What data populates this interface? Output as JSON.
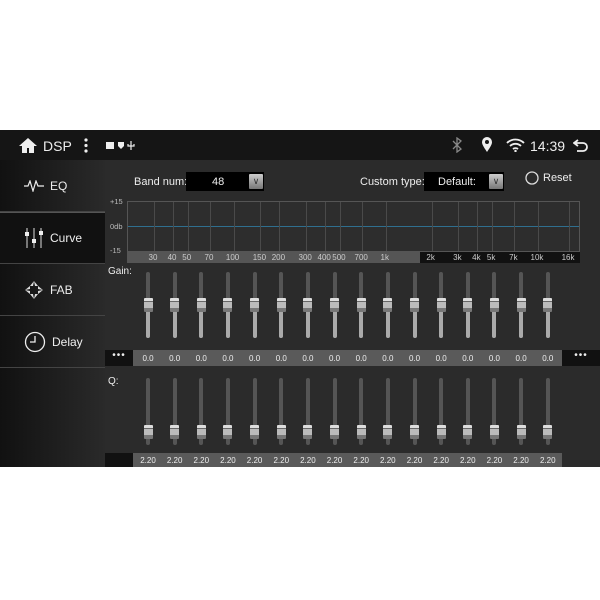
{
  "status": {
    "title": "DSP",
    "time": "14:39",
    "icons": [
      "home-icon",
      "more-vert-icon",
      "image-icon",
      "shield-icon",
      "usb-icon",
      "bluetooth-icon",
      "location-icon",
      "wifi-icon",
      "back-icon"
    ]
  },
  "sidebar": {
    "items": [
      {
        "label": "EQ",
        "icon": "waveform-icon"
      },
      {
        "label": "Curve",
        "icon": "sliders-icon",
        "selected": true
      },
      {
        "label": "FAB",
        "icon": "fader-balance-icon"
      },
      {
        "label": "Delay",
        "icon": "clock-icon"
      }
    ]
  },
  "controls": {
    "band_label": "Band num:",
    "band_value": "48",
    "custom_label": "Custom type:",
    "custom_value": "Default:",
    "reset_label": "Reset"
  },
  "graph": {
    "y_top": "+15",
    "y_mid": "0db",
    "y_bot": "-15",
    "freqs": [
      "30",
      "40",
      "50",
      "70",
      "100",
      "150",
      "200",
      "300",
      "400",
      "500",
      "700",
      "1k",
      "2k",
      "3k",
      "4k",
      "5k",
      "7k",
      "10k",
      "16k"
    ],
    "freq_hz": [
      30,
      40,
      50,
      70,
      100,
      150,
      200,
      300,
      400,
      500,
      700,
      1000,
      2000,
      3000,
      4000,
      5000,
      7000,
      10000,
      16000
    ],
    "line_color": "#2f6f8f"
  },
  "gain": {
    "label": "Gain:",
    "range": [
      -15,
      15
    ],
    "values": [
      "0.0",
      "0.0",
      "0.0",
      "0.0",
      "0.0",
      "0.0",
      "0.0",
      "0.0",
      "0.0",
      "0.0",
      "0.0",
      "0.0",
      "0.0",
      "0.0",
      "0.0",
      "0.0"
    ],
    "more": "•••"
  },
  "q": {
    "label": "Q:",
    "level": 0.2,
    "values": [
      "2.20",
      "2.20",
      "2.20",
      "2.20",
      "2.20",
      "2.20",
      "2.20",
      "2.20",
      "2.20",
      "2.20",
      "2.20",
      "2.20",
      "2.20",
      "2.20",
      "2.20",
      "2.20"
    ]
  }
}
